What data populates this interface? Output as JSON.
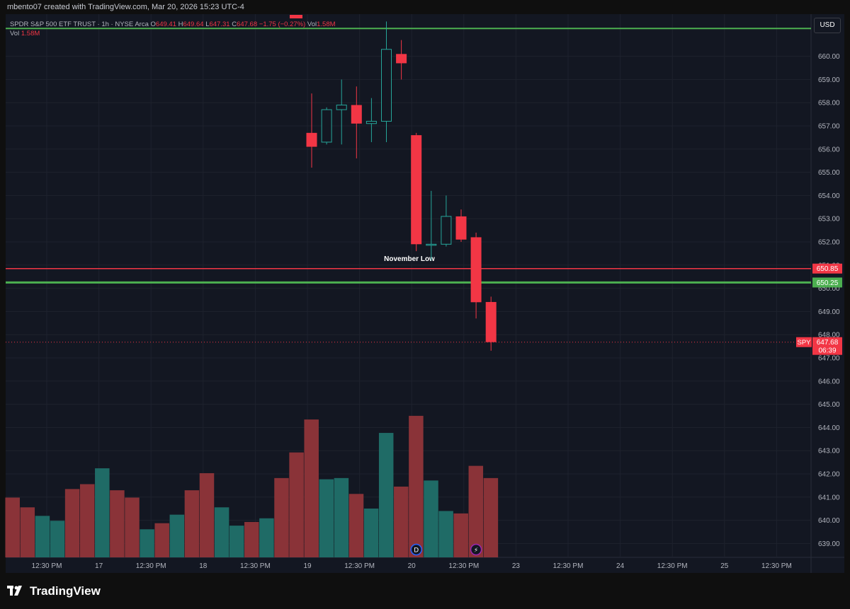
{
  "header": {
    "credit": "mbento07 created with TradingView.com, Mar 20, 2026 15:23 UTC-4"
  },
  "legend": {
    "symbol": "SPDR S&P 500 ETF TRUST · 1h · NYSE Arca",
    "o_label": "O",
    "o": "649.41",
    "h_label": "H",
    "h": "649.64",
    "l_label": "L",
    "l": "647.31",
    "c_label": "C",
    "c": "647.68",
    "change": "−1.75 (−0.27%)",
    "vol_label": "Vol",
    "vol": "1.58M",
    "vol_pane_label": "Vol",
    "vol_pane_value": "1.58M"
  },
  "currency_button": "USD",
  "brand": {
    "name": "TradingView"
  },
  "colors": {
    "bg": "#131722",
    "grid": "#1e222d",
    "up": "#26a69a",
    "down": "#f23645",
    "vol_up": "#1f6b66",
    "vol_down": "#8a3338",
    "green_line": "#4caf50",
    "red_line": "#f23645"
  },
  "chart_data": {
    "type": "candlestick",
    "interval": "1h",
    "y_axis": {
      "ticks": [
        "639.00",
        "640.00",
        "641.00",
        "642.00",
        "643.00",
        "644.00",
        "645.00",
        "646.00",
        "647.00",
        "648.00",
        "649.00",
        "650.00",
        "651.00",
        "652.00",
        "653.00",
        "654.00",
        "655.00",
        "656.00",
        "657.00",
        "658.00",
        "659.00",
        "660.00"
      ],
      "range": [
        638.6,
        661.1
      ]
    },
    "x_axis": {
      "labels": [
        "12:30 PM",
        "17",
        "12:30 PM",
        "18",
        "12:30 PM",
        "19",
        "12:30 PM",
        "20",
        "12:30 PM",
        "23",
        "12:30 PM",
        "24",
        "12:30 PM",
        "25",
        "12:30 PM"
      ]
    },
    "candles": [
      {
        "bar": 20,
        "open": 656.7,
        "high": 658.4,
        "low": 655.2,
        "close": 656.1
      },
      {
        "bar": 21,
        "open": 656.3,
        "high": 657.8,
        "low": 656.2,
        "close": 657.7
      },
      {
        "bar": 22,
        "open": 657.7,
        "high": 659.0,
        "low": 656.2,
        "close": 657.9
      },
      {
        "bar": 23,
        "open": 657.9,
        "high": 658.7,
        "low": 655.6,
        "close": 657.1
      },
      {
        "bar": 24,
        "open": 657.1,
        "high": 658.2,
        "low": 656.3,
        "close": 657.2
      },
      {
        "bar": 25,
        "open": 657.2,
        "high": 661.5,
        "low": 656.3,
        "close": 660.3
      },
      {
        "bar": 26,
        "open": 660.1,
        "high": 660.7,
        "low": 659.0,
        "close": 659.7
      },
      {
        "bar": 27,
        "open": 656.6,
        "high": 656.7,
        "low": 651.6,
        "close": 651.9
      },
      {
        "bar": 28,
        "open": 651.9,
        "high": 654.2,
        "low": 651.2,
        "close": 651.9
      },
      {
        "bar": 29,
        "open": 651.9,
        "high": 654.0,
        "low": 651.8,
        "close": 653.1
      },
      {
        "bar": 30,
        "open": 653.1,
        "high": 653.4,
        "low": 652.0,
        "close": 652.1
      },
      {
        "bar": 31,
        "open": 652.2,
        "high": 652.4,
        "low": 648.7,
        "close": 649.4
      },
      {
        "bar": 32,
        "open": 649.41,
        "high": 649.64,
        "low": 647.31,
        "close": 647.68
      }
    ],
    "volume": {
      "unit": "relative",
      "bars": [
        {
          "bar": 0,
          "v": 2.45,
          "dir": "down"
        },
        {
          "bar": 1,
          "v": 2.05,
          "dir": "down"
        },
        {
          "bar": 2,
          "v": 1.7,
          "dir": "up"
        },
        {
          "bar": 3,
          "v": 1.5,
          "dir": "up"
        },
        {
          "bar": 4,
          "v": 2.8,
          "dir": "down"
        },
        {
          "bar": 5,
          "v": 3.0,
          "dir": "down"
        },
        {
          "bar": 6,
          "v": 3.65,
          "dir": "up"
        },
        {
          "bar": 7,
          "v": 2.75,
          "dir": "down"
        },
        {
          "bar": 8,
          "v": 2.45,
          "dir": "down"
        },
        {
          "bar": 9,
          "v": 1.15,
          "dir": "up"
        },
        {
          "bar": 10,
          "v": 1.4,
          "dir": "down"
        },
        {
          "bar": 11,
          "v": 1.75,
          "dir": "up"
        },
        {
          "bar": 12,
          "v": 2.75,
          "dir": "down"
        },
        {
          "bar": 13,
          "v": 3.45,
          "dir": "down"
        },
        {
          "bar": 14,
          "v": 2.05,
          "dir": "up"
        },
        {
          "bar": 15,
          "v": 1.3,
          "dir": "up"
        },
        {
          "bar": 16,
          "v": 1.45,
          "dir": "down"
        },
        {
          "bar": 17,
          "v": 1.6,
          "dir": "up"
        },
        {
          "bar": 18,
          "v": 3.25,
          "dir": "down"
        },
        {
          "bar": 19,
          "v": 4.3,
          "dir": "down"
        },
        {
          "bar": 20,
          "v": 5.65,
          "dir": "down"
        },
        {
          "bar": 21,
          "v": 3.2,
          "dir": "up"
        },
        {
          "bar": 22,
          "v": 3.25,
          "dir": "up"
        },
        {
          "bar": 23,
          "v": 2.6,
          "dir": "down"
        },
        {
          "bar": 24,
          "v": 2.0,
          "dir": "up"
        },
        {
          "bar": 25,
          "v": 5.1,
          "dir": "up"
        },
        {
          "bar": 26,
          "v": 2.9,
          "dir": "down"
        },
        {
          "bar": 27,
          "v": 5.8,
          "dir": "down"
        },
        {
          "bar": 28,
          "v": 3.15,
          "dir": "up"
        },
        {
          "bar": 29,
          "v": 1.9,
          "dir": "up"
        },
        {
          "bar": 30,
          "v": 1.8,
          "dir": "down"
        },
        {
          "bar": 31,
          "v": 3.75,
          "dir": "down"
        },
        {
          "bar": 32,
          "v": 3.25,
          "dir": "down"
        }
      ]
    },
    "horizontal_lines": [
      {
        "name": "November Low",
        "price": 650.85,
        "label": "650.85",
        "color": "#f23645"
      },
      {
        "name": "",
        "price": 650.25,
        "label": "650.25",
        "color": "#4caf50"
      },
      {
        "name": "",
        "price": 661.2,
        "label": "",
        "color": "#4caf50"
      }
    ],
    "annotation": {
      "text": "November Low"
    },
    "last_price": {
      "symbol": "SPY",
      "price": 647.68,
      "label": "647.68",
      "countdown": "06:39"
    },
    "markers": [
      {
        "bar": 27,
        "text": "D",
        "color": "#2962ff"
      },
      {
        "bar": 31,
        "text": "⚡",
        "color": "#9c27b0"
      }
    ],
    "grid": true
  }
}
